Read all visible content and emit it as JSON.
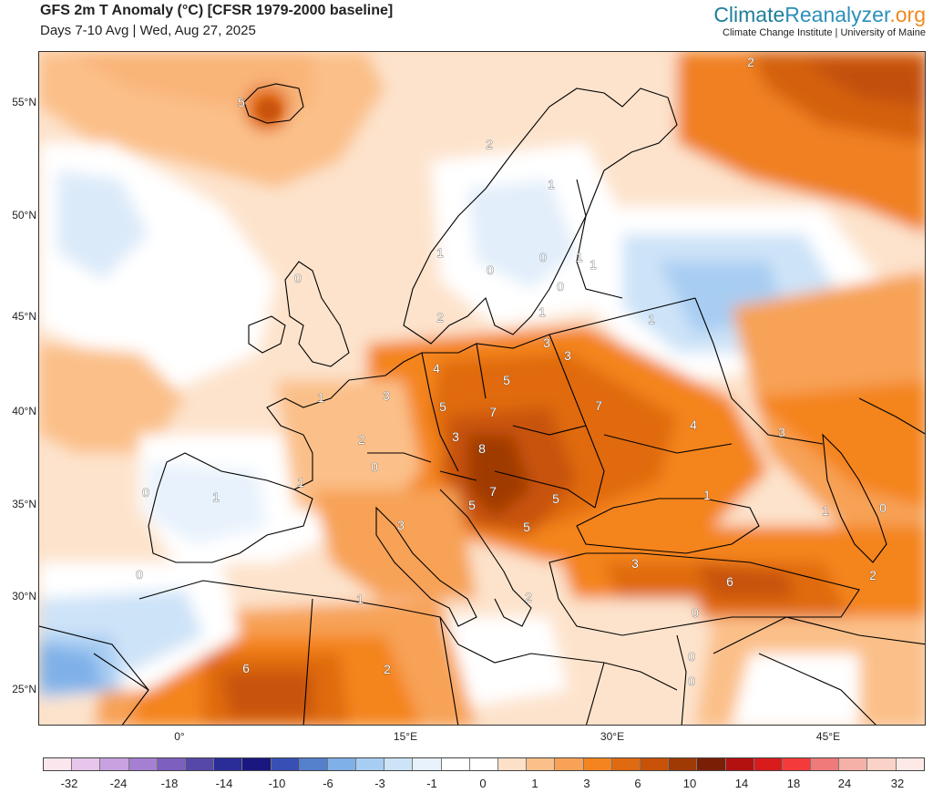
{
  "header": {
    "title": "GFS 2m T Anomaly (°C) [CFSR 1979-2000 baseline]",
    "subtitle": "Days 7-10 Avg | Wed, Aug 27, 2025"
  },
  "brand": {
    "name_part1": "Climate",
    "name_part2": "Reanalyzer",
    "name_part3": ".org",
    "tagline": "Climate Change Institute | University of Maine",
    "colors": {
      "part1": "#1f7f98",
      "part2": "#2c8fb8",
      "part3": "#f08a1c"
    }
  },
  "axes": {
    "lat_labels": [
      "55°N",
      "50°N",
      "45°N",
      "40°N",
      "35°N",
      "30°N",
      "25°N"
    ],
    "lon_labels": [
      "0°",
      "15°E",
      "30°E",
      "45°E"
    ]
  },
  "contour_labels": [
    "2",
    "5",
    "2",
    "1",
    "0",
    "1",
    "1",
    "0",
    "0",
    "1",
    "2",
    "1",
    "0",
    "1",
    "3",
    "3",
    "4",
    "5",
    "1",
    "3",
    "5",
    "7",
    "7",
    "3",
    "8",
    "4",
    "2",
    "0",
    "0",
    "7",
    "5",
    "5",
    "5",
    "1",
    "1",
    "1",
    "3",
    "1",
    "0",
    "3",
    "6",
    "3",
    "2",
    "1",
    "0",
    "2",
    "0",
    "6",
    "0",
    "0",
    "2"
  ],
  "colorbar": {
    "labels": [
      "-32",
      "-24",
      "-18",
      "-14",
      "-10",
      "-6",
      "-3",
      "-1",
      "0",
      "1",
      "3",
      "6",
      "10",
      "14",
      "18",
      "24",
      "32"
    ],
    "colors": [
      "#fbe6ee",
      "#e6c6ea",
      "#c8a2e0",
      "#a57fd2",
      "#7c5fbf",
      "#5548a8",
      "#2a2c98",
      "#1a1780",
      "#3850b5",
      "#5580cc",
      "#7fb0e8",
      "#a8cdf2",
      "#cde3f8",
      "#e8f2fc",
      "#ffffff",
      "#ffffff",
      "#fde0c8",
      "#fbc089",
      "#f7a257",
      "#f4841f",
      "#e06a10",
      "#c85208",
      "#a03a05",
      "#7a1f05",
      "#b31010",
      "#d81c1c",
      "#f53a3a",
      "#ee7a7a",
      "#f5b0a8",
      "#fad2c8",
      "#fde9e6"
    ]
  }
}
